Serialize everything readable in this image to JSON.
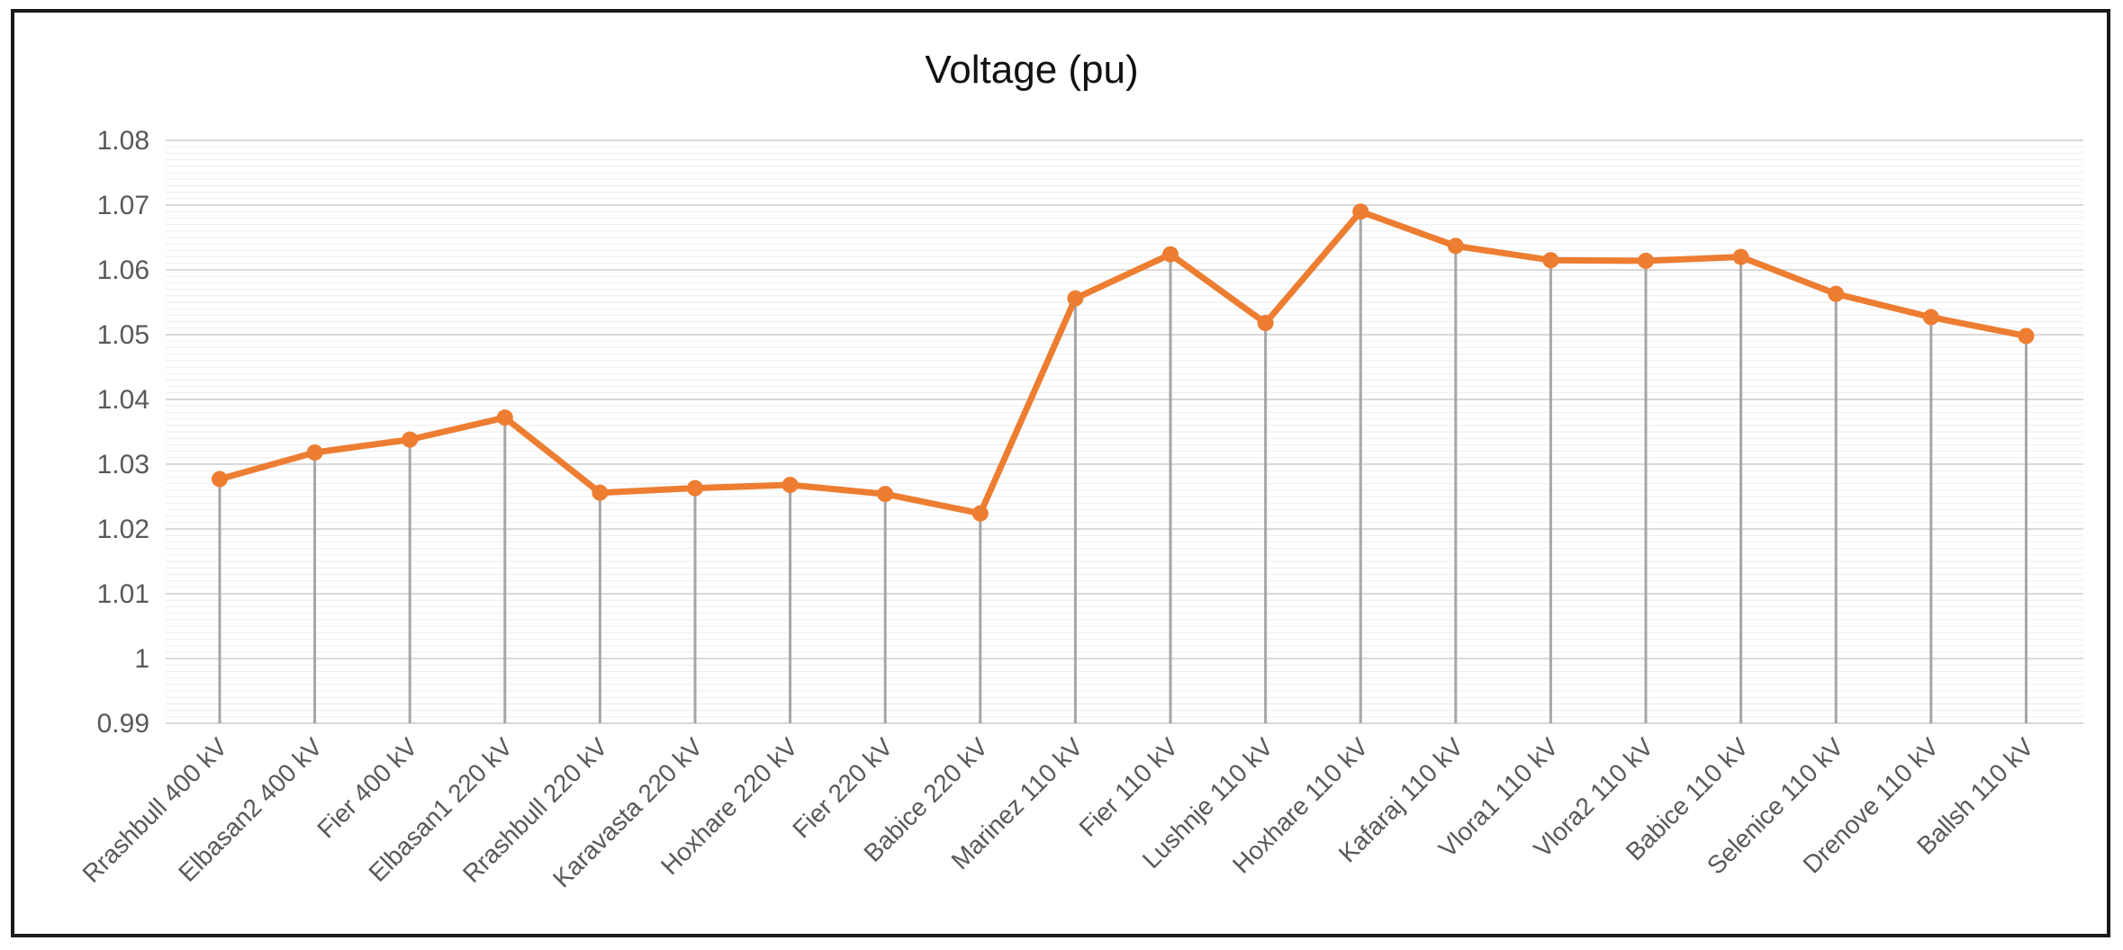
{
  "chart_data": {
    "type": "line",
    "title": "Voltage (pu)",
    "xlabel": "",
    "ylabel": "",
    "ylim": [
      0.99,
      1.08
    ],
    "yticks": [
      "0.99",
      "1",
      "1.01",
      "1.02",
      "1.03",
      "1.04",
      "1.05",
      "1.06",
      "1.07",
      "1.08"
    ],
    "ytick_values": [
      0.99,
      1.0,
      1.01,
      1.02,
      1.03,
      1.04,
      1.05,
      1.06,
      1.07,
      1.08
    ],
    "grid": true,
    "drop_lines": true,
    "categories": [
      "Rrashbull 400 kV",
      "Elbasan2 400 kV",
      "Fier 400 kV",
      "Elbasan1 220 kV",
      "Rrashbull 220 kV",
      "Karavasta 220 kV",
      "Hoxhare 220 kV",
      "Fier 220 kV",
      "Babice 220 kV",
      "Marinez 110 kV",
      "Fier 110 kV",
      "Lushnje 110 kV",
      "Hoxhare 110 kV",
      "Kafaraj 110 kV",
      "Vlora1 110 kV",
      "Vlora2 110 kV",
      "Babice 110 kV",
      "Selenice 110 kV",
      "Drenove 110 kV",
      "Ballsh 110 kV"
    ],
    "series": [
      {
        "values": [
          1.0277,
          1.0318,
          1.0338,
          1.0372,
          1.0256,
          1.0263,
          1.0268,
          1.0254,
          1.0224,
          1.0556,
          1.0624,
          1.0518,
          1.069,
          1.0637,
          1.0615,
          1.0614,
          1.062,
          1.0563,
          1.0527,
          1.0498
        ],
        "color": "#ED7D31"
      }
    ],
    "colors": {
      "line": "#ED7D31",
      "drop_line": "#A6A6A6",
      "grid_major": "#D9D9D9",
      "grid_minor": "#EDEDED"
    }
  }
}
